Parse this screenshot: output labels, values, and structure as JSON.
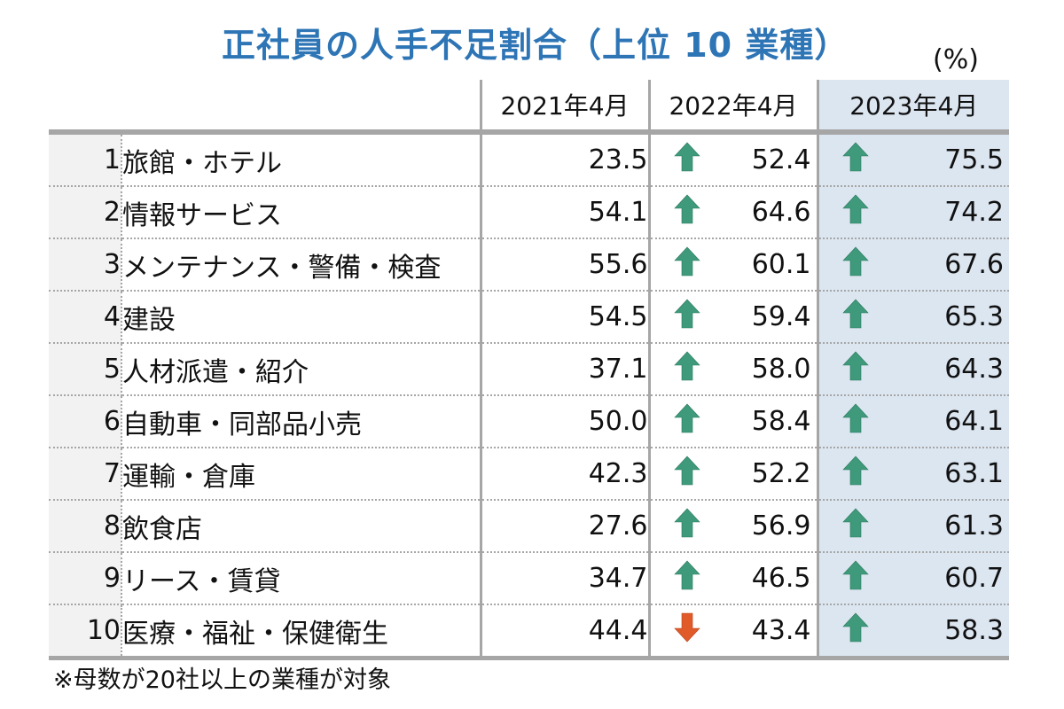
{
  "title": "正社員の人手不足割合（上位 10 業種）",
  "unit": "(%)",
  "columns": [
    "2021年4月",
    "2022年4月",
    "2023年4月"
  ],
  "colors": {
    "title": "#2e75b6",
    "highlight_bg": "#dce6f1",
    "rank_bg": "#f2f2f2",
    "border": "#a6a6a6",
    "up_arrow": "#3e9a7a",
    "down_arrow": "#e05a2a"
  },
  "rows": [
    {
      "rank": "1",
      "industry": "旅館・ホテル",
      "y2021": "23.5",
      "y2022": "52.4",
      "dir2022": "up",
      "y2023": "75.5",
      "dir2023": "up"
    },
    {
      "rank": "2",
      "industry": "情報サービス",
      "y2021": "54.1",
      "y2022": "64.6",
      "dir2022": "up",
      "y2023": "74.2",
      "dir2023": "up"
    },
    {
      "rank": "3",
      "industry": "メンテナンス・警備・検査",
      "y2021": "55.6",
      "y2022": "60.1",
      "dir2022": "up",
      "y2023": "67.6",
      "dir2023": "up"
    },
    {
      "rank": "4",
      "industry": "建設",
      "y2021": "54.5",
      "y2022": "59.4",
      "dir2022": "up",
      "y2023": "65.3",
      "dir2023": "up"
    },
    {
      "rank": "5",
      "industry": "人材派遣・紹介",
      "y2021": "37.1",
      "y2022": "58.0",
      "dir2022": "up",
      "y2023": "64.3",
      "dir2023": "up"
    },
    {
      "rank": "6",
      "industry": "自動車・同部品小売",
      "y2021": "50.0",
      "y2022": "58.4",
      "dir2022": "up",
      "y2023": "64.1",
      "dir2023": "up"
    },
    {
      "rank": "7",
      "industry": "運輸・倉庫",
      "y2021": "42.3",
      "y2022": "52.2",
      "dir2022": "up",
      "y2023": "63.1",
      "dir2023": "up"
    },
    {
      "rank": "8",
      "industry": "飲食店",
      "y2021": "27.6",
      "y2022": "56.9",
      "dir2022": "up",
      "y2023": "61.3",
      "dir2023": "up"
    },
    {
      "rank": "9",
      "industry": "リース・賃貸",
      "y2021": "34.7",
      "y2022": "46.5",
      "dir2022": "up",
      "y2023": "60.7",
      "dir2023": "up"
    },
    {
      "rank": "10",
      "industry": "医療・福祉・保健衛生",
      "y2021": "44.4",
      "y2022": "43.4",
      "dir2022": "down",
      "y2023": "58.3",
      "dir2023": "up"
    }
  ],
  "footnote": "※母数が20社以上の業種が対象",
  "chart_data": {
    "type": "table",
    "title": "正社員の人手不足割合（上位 10 業種）",
    "unit": "%",
    "categories": [
      "旅館・ホテル",
      "情報サービス",
      "メンテナンス・警備・検査",
      "建設",
      "人材派遣・紹介",
      "自動車・同部品小売",
      "運輸・倉庫",
      "飲食店",
      "リース・賃貸",
      "医療・福祉・保健衛生"
    ],
    "series": [
      {
        "name": "2021年4月",
        "values": [
          23.5,
          54.1,
          55.6,
          54.5,
          37.1,
          50.0,
          42.3,
          27.6,
          34.7,
          44.4
        ]
      },
      {
        "name": "2022年4月",
        "values": [
          52.4,
          64.6,
          60.1,
          59.4,
          58.0,
          58.4,
          52.2,
          56.9,
          46.5,
          43.4
        ]
      },
      {
        "name": "2023年4月",
        "values": [
          75.5,
          74.2,
          67.6,
          65.3,
          64.3,
          64.1,
          63.1,
          61.3,
          60.7,
          58.3
        ]
      }
    ],
    "annotations": [
      "Green up arrows mark increases vs previous year; red down arrow (医療・福祉・保健衛生 2022年4月) marks decrease",
      "※母数が20社以上の業種が対象"
    ]
  }
}
